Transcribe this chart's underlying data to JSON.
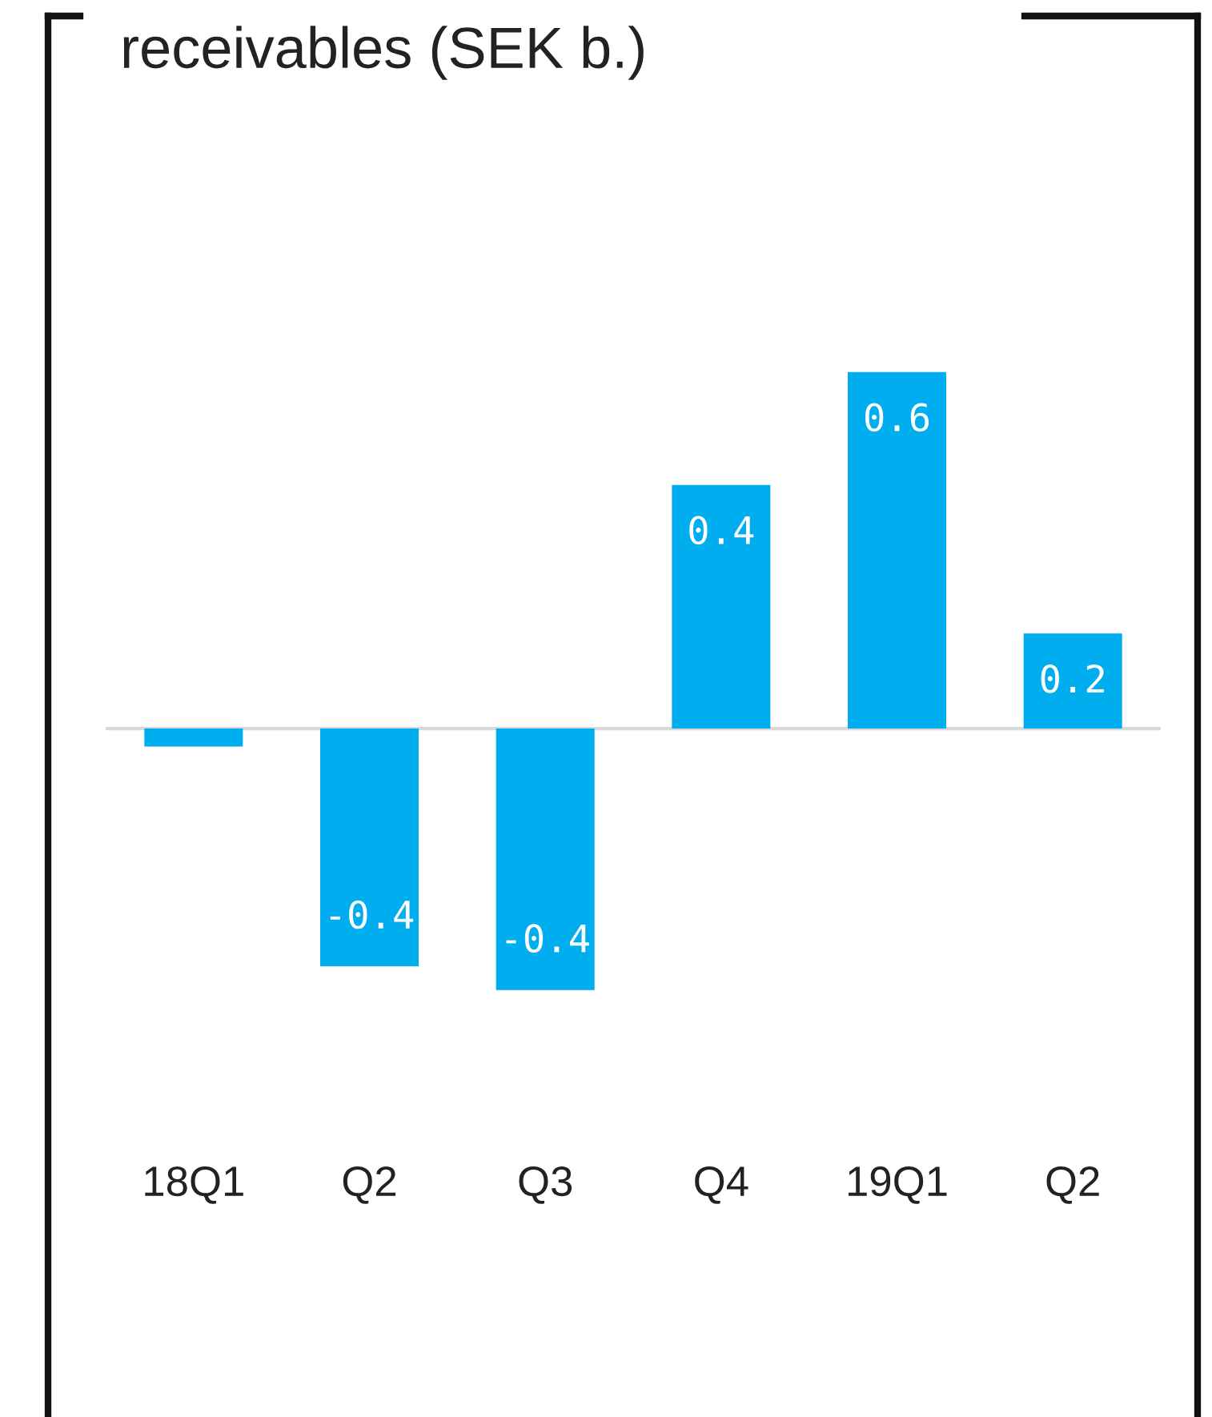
{
  "chart_data": {
    "type": "bar",
    "title": "receivables (SEK b.)",
    "categories": [
      "18Q1",
      "Q2",
      "Q3",
      "Q4",
      "19Q1",
      "Q2"
    ],
    "values": [
      -0.03,
      -0.4,
      -0.44,
      0.41,
      0.6,
      0.16
    ],
    "value_labels": [
      null,
      "-0.4",
      "-0.4",
      "0.4",
      "0.6",
      "0.2"
    ],
    "color": "#00aeef"
  }
}
